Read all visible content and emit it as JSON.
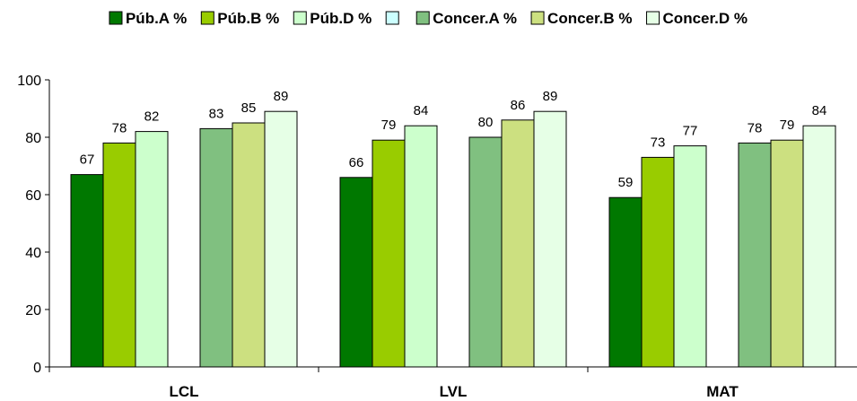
{
  "chart_data": {
    "type": "bar",
    "categories": [
      "LCL",
      "LVL",
      "MAT"
    ],
    "series": [
      {
        "name": "Púb.A %",
        "color": "#007800",
        "values": [
          67,
          66,
          59
        ]
      },
      {
        "name": "Púb.B %",
        "color": "#99CC00",
        "values": [
          78,
          79,
          73
        ]
      },
      {
        "name": "Púb.D %",
        "color": "#CCFFCC",
        "values": [
          82,
          84,
          77
        ]
      },
      {
        "name": "",
        "color": "#CCFFFF",
        "values": [
          null,
          null,
          null
        ]
      },
      {
        "name": "Concer.A %",
        "color": "#80C080",
        "values": [
          83,
          80,
          78
        ]
      },
      {
        "name": "Concer.B %",
        "color": "#CCE080",
        "values": [
          85,
          86,
          79
        ]
      },
      {
        "name": "Concer.D %",
        "color": "#E6FFE6",
        "values": [
          89,
          89,
          84
        ]
      }
    ],
    "ylim": [
      0,
      100
    ],
    "yticks": [
      0,
      20,
      40,
      60,
      80,
      100
    ],
    "title": "",
    "xlabel": "",
    "ylabel": "",
    "legend_position": "top",
    "grid": false
  }
}
